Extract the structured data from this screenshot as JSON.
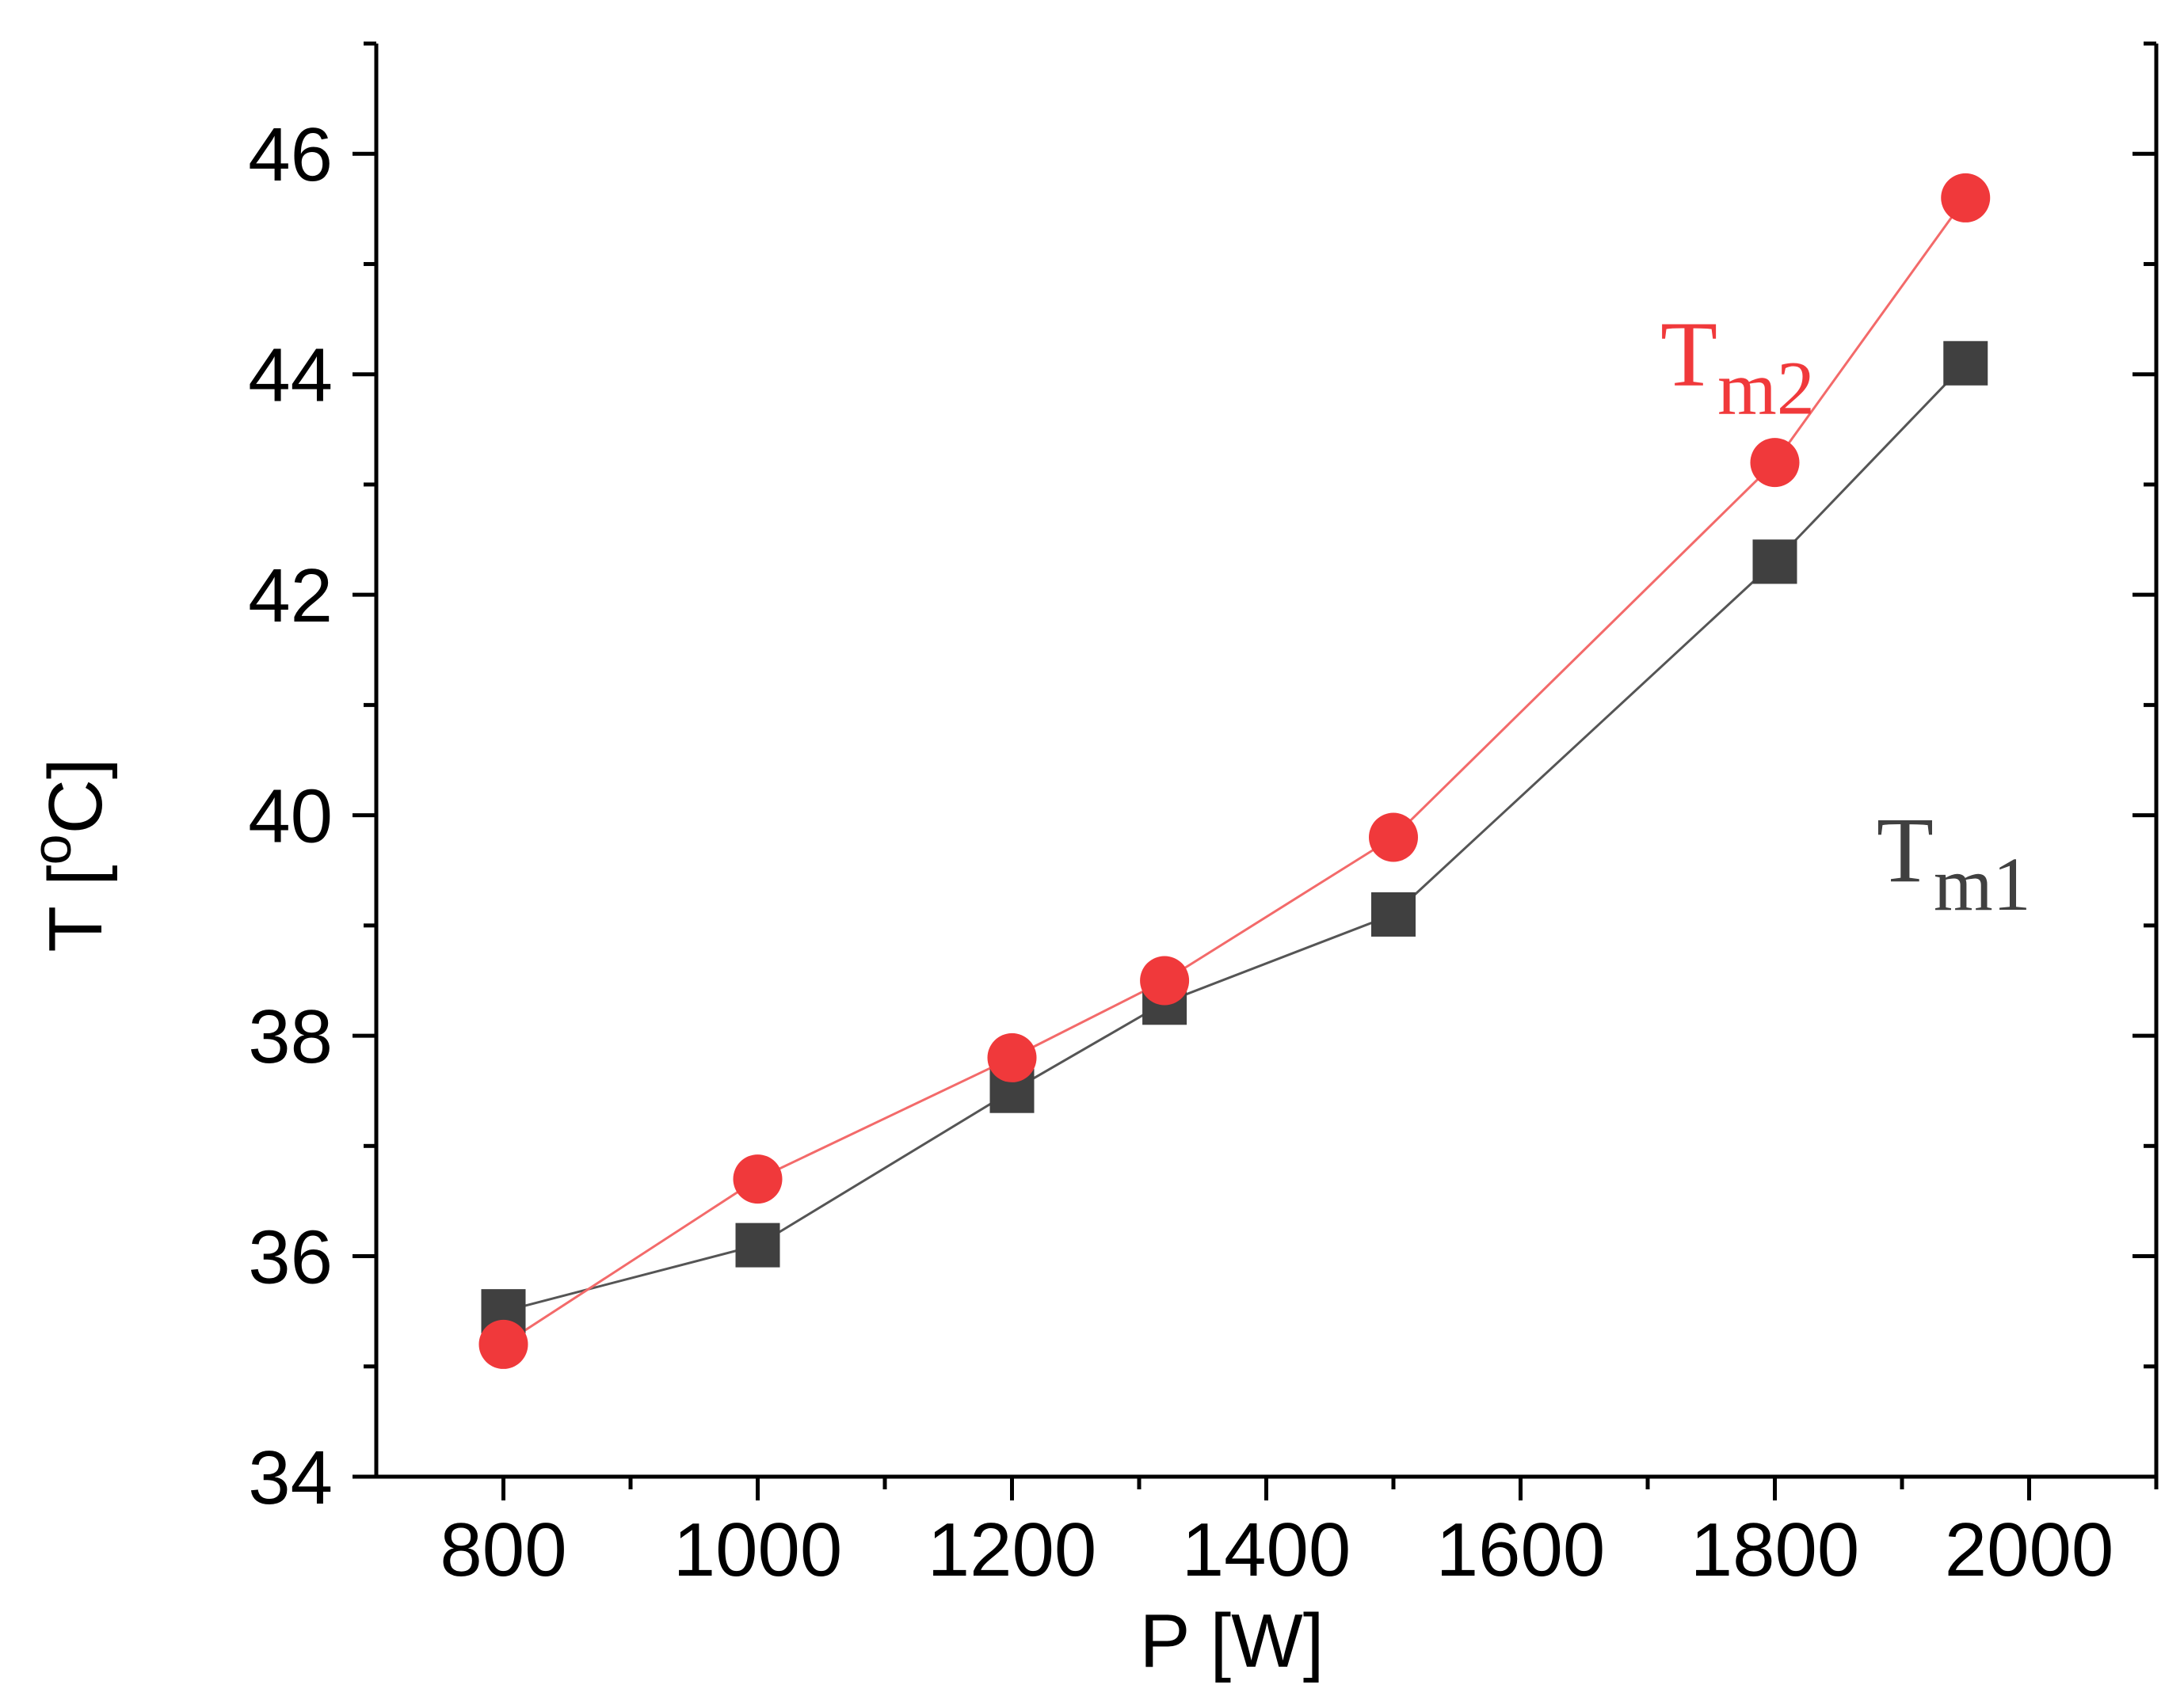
{
  "chart_data": {
    "type": "line",
    "title": "",
    "xlabel": "P [W]",
    "ylabel": {
      "prefix": "T [",
      "sup": "o",
      "suffix": "C]"
    },
    "xlim": [
      700,
      2100
    ],
    "ylim": [
      34,
      47
    ],
    "xticks": [
      800,
      1000,
      1200,
      1400,
      1600,
      1800,
      2000
    ],
    "xticks_minor": [
      900,
      1100,
      1300,
      1500,
      1700,
      1900,
      2100
    ],
    "yticks": [
      34,
      36,
      38,
      40,
      42,
      44,
      46
    ],
    "yticks_minor": [
      35,
      37,
      39,
      41,
      43,
      45,
      47
    ],
    "x": [
      800,
      1000,
      1200,
      1320,
      1500,
      1800,
      1950
    ],
    "series": [
      {
        "name": "Tm1",
        "label_main": "T",
        "label_sub": "m1",
        "marker": "square",
        "color": "#404040",
        "line_color": "#555555",
        "values": [
          35.5,
          36.1,
          37.5,
          38.3,
          39.1,
          42.3,
          44.1
        ],
        "label_at": {
          "x": 1880,
          "y": 39.4
        }
      },
      {
        "name": "Tm2",
        "label_main": "T",
        "label_sub": "m2",
        "marker": "circle",
        "color": "#f0393b",
        "line_color": "#f36a6a",
        "values": [
          35.2,
          36.7,
          37.8,
          38.5,
          39.8,
          43.2,
          45.6
        ],
        "label_at": {
          "x": 1710,
          "y": 43.9
        }
      }
    ]
  }
}
